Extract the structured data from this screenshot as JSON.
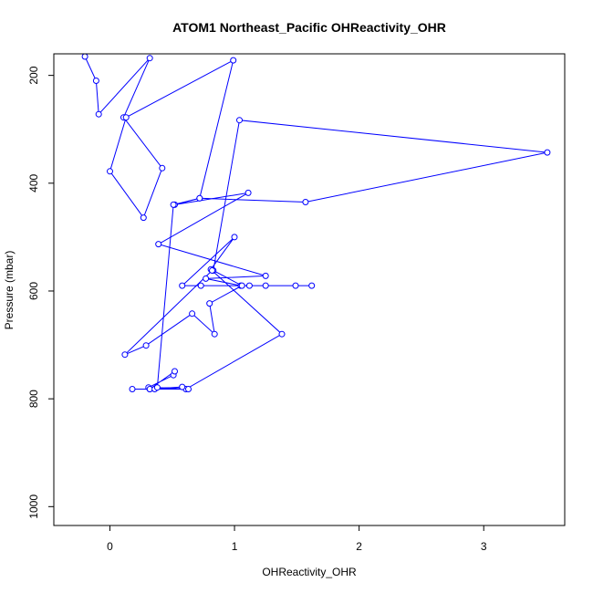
{
  "chart_data": {
    "type": "line",
    "title": "ATOM1 Northeast_Pacific OHReactivity_OHR",
    "xlabel": "OHReactivity_OHR",
    "ylabel": "Pressure (mbar)",
    "xlim": [
      -0.45,
      3.65
    ],
    "ylim": [
      1035,
      160
    ],
    "y_reversed": true,
    "x_ticks": [
      0,
      1,
      2,
      3
    ],
    "y_ticks": [
      200,
      400,
      600,
      800,
      1000
    ],
    "x_tick_labels": [
      "0",
      "1",
      "2",
      "3"
    ],
    "y_tick_labels": [
      "200",
      "400",
      "600",
      "800",
      "1000"
    ],
    "series": [
      {
        "name": "OHReactivity_OHR",
        "color": "#0000ff",
        "points": [
          [
            -0.2,
            165
          ],
          [
            -0.11,
            210
          ],
          [
            -0.09,
            272
          ],
          [
            0.32,
            168
          ],
          [
            0.11,
            278
          ],
          [
            0.42,
            372
          ],
          [
            0.27,
            464
          ],
          [
            0.0,
            378
          ],
          [
            0.13,
            278
          ],
          [
            0.99,
            172
          ],
          [
            0.72,
            428
          ],
          [
            0.52,
            440
          ],
          [
            1.11,
            418
          ],
          [
            0.39,
            513
          ],
          [
            1.25,
            572
          ],
          [
            0.77,
            577
          ],
          [
            1.05,
            590
          ],
          [
            1.25,
            590
          ],
          [
            1.62,
            590
          ],
          [
            1.12,
            590
          ],
          [
            1.49,
            590
          ],
          [
            0.73,
            590
          ],
          [
            0.58,
            590
          ],
          [
            1.0,
            500
          ],
          [
            0.81,
            560
          ],
          [
            1.38,
            680
          ],
          [
            0.61,
            782
          ],
          [
            0.18,
            782
          ],
          [
            0.32,
            782
          ],
          [
            0.31,
            779
          ],
          [
            0.51,
            756
          ],
          [
            0.52,
            749
          ],
          [
            0.32,
            782
          ],
          [
            0.58,
            778
          ],
          [
            0.36,
            782
          ],
          [
            0.63,
            782
          ],
          [
            0.38,
            779
          ],
          [
            0.51,
            440
          ],
          [
            0.72,
            428
          ],
          [
            1.57,
            435
          ],
          [
            3.51,
            343
          ],
          [
            1.04,
            283
          ],
          [
            0.83,
            562
          ],
          [
            1.06,
            590
          ],
          [
            0.8,
            623
          ],
          [
            0.84,
            680
          ],
          [
            0.66,
            642
          ],
          [
            0.29,
            701
          ],
          [
            0.12,
            718
          ],
          [
            0.82,
            562
          ]
        ]
      }
    ]
  }
}
